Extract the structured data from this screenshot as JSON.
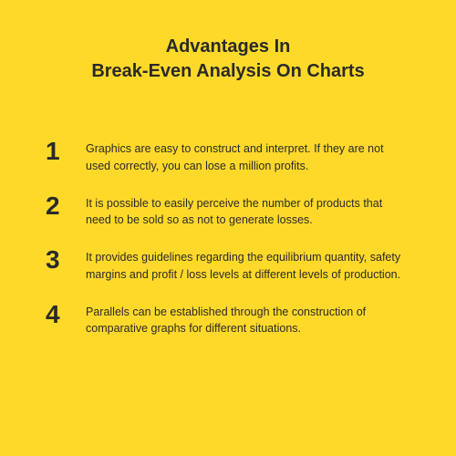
{
  "background_color": "#ffd92a",
  "text_color": "#2a2a2a",
  "title": {
    "line1": "Advantages In",
    "line2": "Break-Even Analysis On Charts",
    "fontsize": 20,
    "fontweight": 700
  },
  "number_style": {
    "fontsize": 28,
    "fontweight": 700
  },
  "body_style": {
    "fontsize": 12.5,
    "lineheight": 1.5
  },
  "items": [
    {
      "number": "1",
      "text": "Graphics are easy to construct and interpret. If they are not used correctly, you can lose a million profits."
    },
    {
      "number": "2",
      "text": "It is possible to easily perceive the number of products that need to be sold so as not to generate losses."
    },
    {
      "number": "3",
      "text": "It provides guidelines regarding the equilibrium quantity, safety margins and profit / loss levels at different levels of production."
    },
    {
      "number": "4",
      "text": "Parallels can be established through the construction of comparative graphs for different situations."
    }
  ]
}
